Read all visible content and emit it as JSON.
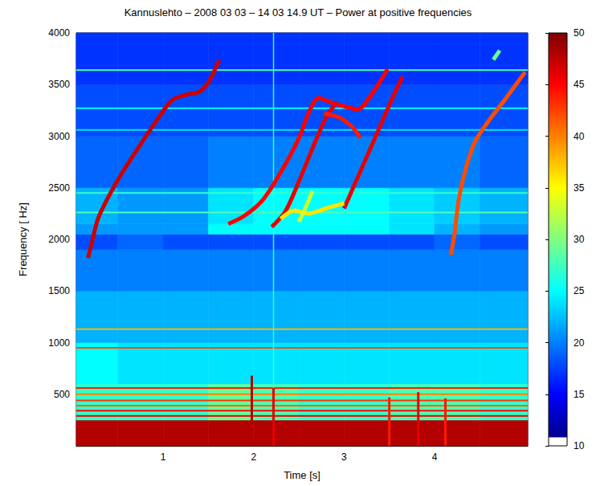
{
  "chart_data": {
    "type": "spectrogram",
    "title": "Kannuslehto – 2008 03 03 – 14 03 14.9 UT – Power at positive frequencies",
    "x_label": "Time [s]",
    "y_label": "Frequency [ Hz]",
    "xlim": [
      0.04,
      5.03
    ],
    "ylim": [
      0,
      4000
    ],
    "xticks": [
      1,
      2,
      3,
      4
    ],
    "yticks": [
      500,
      1000,
      1500,
      2000,
      2500,
      3000,
      3500,
      4000
    ],
    "grid": false,
    "colorbar": {
      "lim": [
        10,
        50
      ],
      "ticks": [
        10,
        15,
        20,
        25,
        30,
        35,
        40,
        45,
        50
      ]
    },
    "cells": {
      "t_edges": [
        0.04,
        0.5,
        1.0,
        1.5,
        2.0,
        2.5,
        3.0,
        3.5,
        4.0,
        4.5,
        5.03
      ],
      "f_edges": [
        0,
        250,
        600,
        1000,
        1500,
        1900,
        2050,
        2150,
        2500,
        3000,
        3500,
        4000
      ],
      "power": [
        [
          48,
          48,
          48,
          48,
          48,
          48,
          48,
          48,
          48,
          48
        ],
        [
          27,
          27,
          27,
          29,
          28,
          27,
          27,
          28,
          28,
          27
        ],
        [
          25,
          24,
          24,
          24,
          24,
          24,
          24,
          24,
          24,
          24
        ],
        [
          22,
          22,
          22,
          22,
          22,
          22,
          22,
          22,
          22,
          22
        ],
        [
          20,
          20,
          20,
          20,
          20,
          20,
          20,
          20,
          20,
          20
        ],
        [
          18,
          19,
          18,
          18,
          18,
          18,
          18,
          18,
          19,
          18
        ],
        [
          21,
          21,
          21,
          25,
          25,
          25,
          25,
          24,
          22,
          21
        ],
        [
          22,
          21,
          21,
          24,
          25,
          25,
          25,
          24,
          23,
          22
        ],
        [
          19,
          19,
          19,
          20,
          20,
          20,
          20,
          20,
          20,
          19
        ],
        [
          18,
          18,
          18,
          18,
          18,
          18,
          18,
          18,
          18,
          18
        ],
        [
          17,
          17,
          17,
          17,
          17,
          17,
          17,
          17,
          17,
          17
        ]
      ]
    },
    "horizontal_lines": [
      {
        "f": 3640,
        "power": 28
      },
      {
        "f": 3270,
        "power": 25
      },
      {
        "f": 3060,
        "power": 24
      },
      {
        "f": 2450,
        "power": 27
      },
      {
        "f": 2260,
        "power": 28
      },
      {
        "f": 1130,
        "power": 38
      },
      {
        "f": 950,
        "power": 42
      },
      {
        "f": 560,
        "power": 44
      },
      {
        "f": 500,
        "power": 40
      },
      {
        "f": 440,
        "power": 43
      },
      {
        "f": 390,
        "power": 41
      },
      {
        "f": 340,
        "power": 45
      },
      {
        "f": 290,
        "power": 46
      }
    ],
    "vertical_lines": [
      {
        "t": 2.22,
        "power": 27
      }
    ],
    "spikes": [
      {
        "t": 1.98,
        "f_top": 680,
        "power": 48
      },
      {
        "t": 2.22,
        "f_top": 560,
        "power": 46
      },
      {
        "t": 3.5,
        "f_top": 470,
        "power": 44
      },
      {
        "t": 3.82,
        "f_top": 520,
        "power": 46
      },
      {
        "t": 4.12,
        "f_top": 460,
        "power": 44
      }
    ],
    "emissions": [
      {
        "power": 47,
        "points": [
          [
            0.17,
            1820
          ],
          [
            0.22,
            2000
          ],
          [
            0.28,
            2200
          ],
          [
            0.4,
            2420
          ],
          [
            0.55,
            2650
          ],
          [
            0.75,
            2920
          ],
          [
            0.95,
            3180
          ],
          [
            1.1,
            3350
          ],
          [
            1.25,
            3400
          ],
          [
            1.4,
            3430
          ],
          [
            1.5,
            3520
          ],
          [
            1.62,
            3740
          ]
        ]
      },
      {
        "power": 45,
        "points": [
          [
            1.72,
            2150
          ],
          [
            1.9,
            2230
          ],
          [
            2.1,
            2380
          ],
          [
            2.3,
            2650
          ],
          [
            2.5,
            2980
          ],
          [
            2.62,
            3250
          ],
          [
            2.72,
            3370
          ],
          [
            2.85,
            3330
          ],
          [
            3.0,
            3290
          ],
          [
            3.15,
            3260
          ],
          [
            3.3,
            3400
          ],
          [
            3.42,
            3560
          ],
          [
            3.48,
            3650
          ]
        ]
      },
      {
        "power": 46,
        "points": [
          [
            2.2,
            2120
          ],
          [
            2.35,
            2270
          ],
          [
            2.5,
            2560
          ],
          [
            2.65,
            2880
          ],
          [
            2.8,
            3180
          ],
          [
            2.92,
            3330
          ]
        ]
      },
      {
        "power": 44,
        "points": [
          [
            2.78,
            3220
          ],
          [
            2.95,
            3180
          ],
          [
            3.1,
            3080
          ],
          [
            3.18,
            2980
          ]
        ]
      },
      {
        "power": 46,
        "points": [
          [
            3.0,
            2300
          ],
          [
            3.1,
            2500
          ],
          [
            3.25,
            2800
          ],
          [
            3.4,
            3100
          ],
          [
            3.55,
            3400
          ],
          [
            3.65,
            3580
          ]
        ]
      },
      {
        "power": 36,
        "points": [
          [
            2.3,
            2200
          ],
          [
            2.45,
            2280
          ],
          [
            2.6,
            2250
          ],
          [
            2.8,
            2300
          ],
          [
            3.0,
            2350
          ]
        ]
      },
      {
        "power": 33,
        "points": [
          [
            2.5,
            2170
          ],
          [
            2.58,
            2320
          ],
          [
            2.65,
            2470
          ]
        ]
      },
      {
        "power": 42,
        "points": [
          [
            4.18,
            1850
          ],
          [
            4.22,
            2050
          ],
          [
            4.27,
            2400
          ],
          [
            4.35,
            2700
          ],
          [
            4.45,
            2950
          ],
          [
            4.6,
            3150
          ],
          [
            4.8,
            3380
          ],
          [
            4.95,
            3560
          ],
          [
            5.0,
            3620
          ]
        ]
      },
      {
        "power": 29,
        "points": [
          [
            4.65,
            3740
          ],
          [
            4.72,
            3830
          ]
        ]
      }
    ]
  }
}
